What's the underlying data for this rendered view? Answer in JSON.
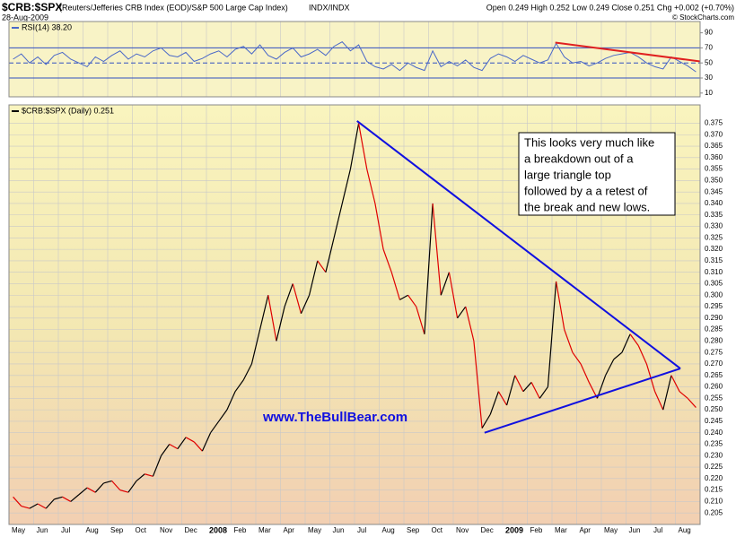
{
  "header": {
    "symbol": "$CRB:$SPX",
    "description": "(Reuters/Jefferies CRB Index (EOD)/S&P 500 Large Cap Index)",
    "exchange": "INDX/INDX",
    "date": "28-Aug-2009",
    "quote": "Open 0.249 High 0.252 Low 0.249 Close 0.251 Chg +0.002 (+0.70%)",
    "credit": "© StockCharts.com"
  },
  "annotations": {
    "note": [
      "This looks very much like",
      "a breakdown out of a",
      "large triangle top",
      "followed by a a retest of",
      "the break and new lows."
    ],
    "watermark": "www.TheBullBear.com"
  },
  "chart_data": [
    {
      "type": "line",
      "ylim": [
        5,
        105
      ],
      "yticks": [
        10,
        30,
        50,
        70,
        90
      ],
      "grid": true,
      "levels": [
        30,
        50,
        70
      ],
      "level_styles": [
        "solid",
        "dashed",
        "solid"
      ],
      "level_color": "#3050c0",
      "series": [
        {
          "name": "RSI(14) 38.20",
          "color": "#4a68c8",
          "values": [
            55,
            62,
            50,
            58,
            48,
            60,
            64,
            55,
            50,
            45,
            58,
            52,
            60,
            66,
            55,
            62,
            58,
            66,
            70,
            60,
            58,
            64,
            52,
            56,
            62,
            66,
            58,
            68,
            72,
            62,
            74,
            60,
            55,
            64,
            70,
            58,
            62,
            68,
            60,
            72,
            78,
            66,
            74,
            52,
            45,
            42,
            48,
            40,
            50,
            44,
            40,
            66,
            45,
            52,
            46,
            54,
            44,
            40,
            56,
            62,
            58,
            52,
            60,
            55,
            50,
            54,
            76,
            58,
            50,
            52,
            46,
            50,
            56,
            60,
            62,
            64,
            58,
            50,
            45,
            42,
            58,
            52,
            46,
            38.2
          ]
        }
      ],
      "trendlines": [
        {
          "color": "#e02020",
          "from": [
            66.4,
            77
          ],
          "to": [
            84,
            52
          ]
        }
      ]
    },
    {
      "type": "line",
      "ylim": [
        0.2,
        0.383
      ],
      "grid": true,
      "yticks": [
        0.205,
        {
          "value": 0.21,
          "label": "0.210"
        },
        0.215,
        {
          "value": 0.22,
          "label": "0.220"
        },
        0.225,
        {
          "value": 0.23,
          "label": "0.230"
        },
        0.235,
        {
          "value": 0.24,
          "label": "0.240"
        },
        0.245,
        {
          "value": 0.25,
          "label": "0.250"
        },
        0.255,
        {
          "value": 0.26,
          "label": "0.260"
        },
        0.265,
        {
          "value": 0.27,
          "label": "0.270"
        },
        0.275,
        {
          "value": 0.28,
          "label": "0.280"
        },
        0.285,
        {
          "value": 0.29,
          "label": "0.290"
        },
        0.295,
        {
          "value": 0.3,
          "label": "0.300"
        },
        0.305,
        {
          "value": 0.31,
          "label": "0.310"
        },
        0.315,
        {
          "value": 0.32,
          "label": "0.320"
        },
        0.325,
        {
          "value": 0.33,
          "label": "0.330"
        },
        0.335,
        {
          "value": 0.34,
          "label": "0.340"
        },
        0.345,
        {
          "value": 0.35,
          "label": "0.350"
        },
        0.355,
        {
          "value": 0.36,
          "label": "0.360"
        },
        0.365,
        {
          "value": 0.37,
          "label": "0.370"
        },
        0.375
      ],
      "categories": [
        "May",
        null,
        null,
        "Jun",
        null,
        null,
        "Jul",
        null,
        null,
        "Aug",
        null,
        null,
        "Sep",
        null,
        null,
        "Oct",
        null,
        null,
        "Nov",
        null,
        null,
        "Dec",
        null,
        null,
        "2008",
        null,
        null,
        "Feb",
        null,
        null,
        "Mar",
        null,
        null,
        "Apr",
        null,
        null,
        "May",
        null,
        null,
        "Jun",
        null,
        null,
        "Jul",
        null,
        null,
        "Aug",
        null,
        null,
        "Sep",
        null,
        null,
        "Oct",
        null,
        null,
        "Nov",
        null,
        null,
        "Dec",
        null,
        null,
        "2009",
        null,
        null,
        "Feb",
        null,
        null,
        "Mar",
        null,
        null,
        "Apr",
        null,
        null,
        "May",
        null,
        null,
        "Jun",
        null,
        null,
        "Jul",
        null,
        null,
        "Aug",
        null,
        null
      ],
      "series": [
        {
          "name": "$CRB:$SPX (Daily) 0.251",
          "up_color": "#000000",
          "down_color": "#e00000",
          "values": [
            0.212,
            0.208,
            0.207,
            0.209,
            0.207,
            0.211,
            0.212,
            0.21,
            0.213,
            0.216,
            0.214,
            0.218,
            0.219,
            0.215,
            0.214,
            0.219,
            0.222,
            0.221,
            0.23,
            0.235,
            0.233,
            0.238,
            0.236,
            0.232,
            0.24,
            0.245,
            0.25,
            0.258,
            0.263,
            0.27,
            0.285,
            0.3,
            0.28,
            0.295,
            0.305,
            0.292,
            0.3,
            0.315,
            0.31,
            0.325,
            0.34,
            0.355,
            0.375,
            0.355,
            0.34,
            0.32,
            0.31,
            0.298,
            0.3,
            0.295,
            0.283,
            0.34,
            0.3,
            0.31,
            0.29,
            0.295,
            0.28,
            0.242,
            0.248,
            0.258,
            0.252,
            0.265,
            0.258,
            0.262,
            0.255,
            0.26,
            0.306,
            0.285,
            0.275,
            0.27,
            0.262,
            0.255,
            0.265,
            0.272,
            0.275,
            0.283,
            0.278,
            0.27,
            0.258,
            0.25,
            0.265,
            0.258,
            0.255,
            0.251
          ]
        }
      ],
      "trendlines": [
        {
          "color": "#1010e0",
          "from": [
            42.3,
            0.376
          ],
          "to": [
            81.6,
            0.268
          ]
        },
        {
          "color": "#1010e0",
          "from": [
            57.8,
            0.24
          ],
          "to": [
            81.6,
            0.268
          ]
        }
      ]
    }
  ]
}
